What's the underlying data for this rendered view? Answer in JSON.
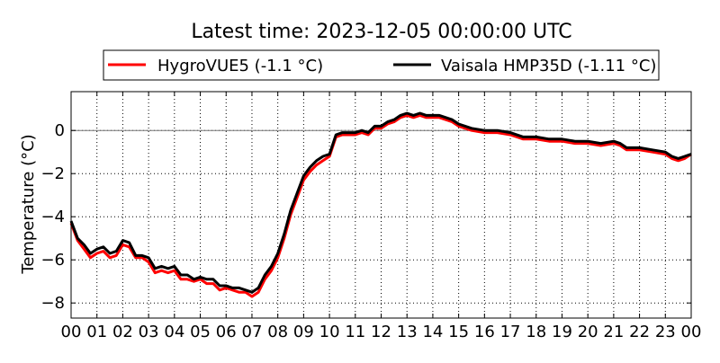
{
  "chart_data": {
    "type": "line",
    "title": "Latest time: 2023-12-05 00:00:00 UTC",
    "xlabel": "",
    "ylabel": "Temperature (°C)",
    "xlim": [
      0,
      24
    ],
    "ylim": [
      -8.7,
      1.8
    ],
    "x_ticks": [
      0,
      1,
      2,
      3,
      4,
      5,
      6,
      7,
      8,
      9,
      10,
      11,
      12,
      13,
      14,
      15,
      16,
      17,
      18,
      19,
      20,
      21,
      22,
      23,
      24
    ],
    "x_tick_labels": [
      "00",
      "01",
      "02",
      "03",
      "04",
      "05",
      "06",
      "07",
      "08",
      "09",
      "10",
      "11",
      "12",
      "13",
      "14",
      "15",
      "16",
      "17",
      "18",
      "19",
      "20",
      "21",
      "22",
      "23",
      "00"
    ],
    "y_ticks": [
      0,
      -2,
      -4,
      -6,
      -8
    ],
    "y_tick_labels": [
      "0",
      "−2",
      "−4",
      "−6",
      "−8"
    ],
    "grid": true,
    "legend_position": "top",
    "x": [
      0,
      0.25,
      0.5,
      0.75,
      1,
      1.25,
      1.5,
      1.75,
      2,
      2.25,
      2.5,
      2.75,
      3,
      3.25,
      3.5,
      3.75,
      4,
      4.25,
      4.5,
      4.75,
      5,
      5.25,
      5.5,
      5.75,
      6,
      6.25,
      6.5,
      6.75,
      7,
      7.25,
      7.5,
      7.75,
      8,
      8.25,
      8.5,
      8.75,
      9,
      9.25,
      9.5,
      9.75,
      10,
      10.25,
      10.5,
      10.75,
      11,
      11.25,
      11.5,
      11.75,
      12,
      12.25,
      12.5,
      12.75,
      13,
      13.25,
      13.5,
      13.75,
      14,
      14.25,
      14.5,
      14.75,
      15,
      15.5,
      16,
      16.5,
      17,
      17.5,
      18,
      18.5,
      19,
      19.5,
      20,
      20.5,
      21,
      21.25,
      21.5,
      22,
      22.5,
      23,
      23.25,
      23.5,
      23.75,
      24
    ],
    "series": [
      {
        "name": "HygroVUE5 (-1.1 °C)",
        "color": "#ff0000",
        "values": [
          -4.3,
          -5.1,
          -5.5,
          -5.9,
          -5.7,
          -5.6,
          -5.9,
          -5.8,
          -5.3,
          -5.4,
          -5.9,
          -5.9,
          -6.1,
          -6.6,
          -6.5,
          -6.6,
          -6.5,
          -6.9,
          -6.9,
          -7.0,
          -6.9,
          -7.1,
          -7.1,
          -7.4,
          -7.3,
          -7.4,
          -7.5,
          -7.5,
          -7.7,
          -7.5,
          -6.9,
          -6.5,
          -5.9,
          -5.0,
          -3.9,
          -3.1,
          -2.3,
          -1.9,
          -1.6,
          -1.4,
          -1.2,
          -0.3,
          -0.2,
          -0.2,
          -0.2,
          -0.1,
          -0.2,
          0.1,
          0.1,
          0.3,
          0.4,
          0.6,
          0.7,
          0.6,
          0.7,
          0.6,
          0.6,
          0.6,
          0.5,
          0.4,
          0.2,
          0.0,
          -0.1,
          -0.1,
          -0.2,
          -0.4,
          -0.4,
          -0.5,
          -0.5,
          -0.6,
          -0.6,
          -0.7,
          -0.6,
          -0.7,
          -0.9,
          -0.9,
          -1.0,
          -1.1,
          -1.3,
          -1.4,
          -1.3,
          -1.1
        ]
      },
      {
        "name": "Vaisala HMP35D (-1.11 °C)",
        "color": "#000000",
        "values": [
          -4.2,
          -5.0,
          -5.3,
          -5.7,
          -5.5,
          -5.4,
          -5.7,
          -5.6,
          -5.1,
          -5.2,
          -5.8,
          -5.8,
          -5.9,
          -6.4,
          -6.3,
          -6.4,
          -6.3,
          -6.7,
          -6.7,
          -6.9,
          -6.8,
          -6.9,
          -6.9,
          -7.2,
          -7.2,
          -7.3,
          -7.3,
          -7.4,
          -7.5,
          -7.3,
          -6.7,
          -6.3,
          -5.7,
          -4.8,
          -3.7,
          -2.9,
          -2.1,
          -1.7,
          -1.4,
          -1.2,
          -1.1,
          -0.2,
          -0.1,
          -0.1,
          -0.1,
          0.0,
          -0.1,
          0.2,
          0.2,
          0.4,
          0.5,
          0.7,
          0.8,
          0.7,
          0.8,
          0.7,
          0.7,
          0.7,
          0.6,
          0.5,
          0.3,
          0.1,
          0.0,
          0.0,
          -0.1,
          -0.3,
          -0.3,
          -0.4,
          -0.4,
          -0.5,
          -0.5,
          -0.6,
          -0.5,
          -0.6,
          -0.8,
          -0.8,
          -0.9,
          -1.0,
          -1.2,
          -1.3,
          -1.2,
          -1.1
        ]
      }
    ]
  }
}
